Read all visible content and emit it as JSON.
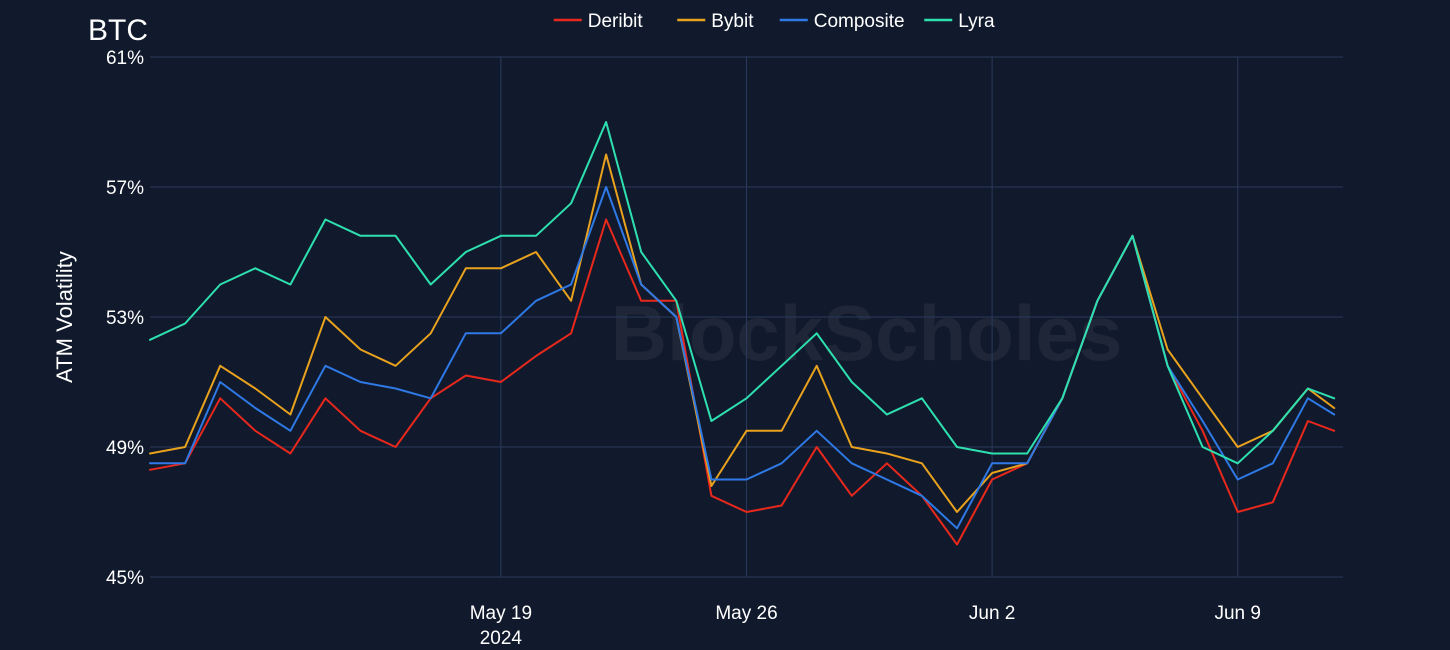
{
  "chart_data": {
    "type": "line",
    "title": "BTC",
    "ylabel": "ATM Volatility",
    "xlabel": "",
    "watermark": "BlockScholes",
    "ylim": [
      45,
      61
    ],
    "yticks": [
      45,
      49,
      53,
      57,
      61
    ],
    "ytick_labels": [
      "45%",
      "49%",
      "53%",
      "57%",
      "61%"
    ],
    "xlim": [
      "2024-05-09",
      "2024-06-12T00:00"
    ],
    "xticks": [
      {
        "date": "2024-05-19",
        "label": "May 19",
        "sublabel": "2024"
      },
      {
        "date": "2024-05-26",
        "label": "May 26",
        "sublabel": ""
      },
      {
        "date": "2024-06-02",
        "label": "Jun 2",
        "sublabel": ""
      },
      {
        "date": "2024-06-09",
        "label": "Jun 9",
        "sublabel": ""
      }
    ],
    "legend_placement": "top-center",
    "grid": true,
    "x": [
      "2024-05-09",
      "2024-05-10",
      "2024-05-11",
      "2024-05-12",
      "2024-05-13",
      "2024-05-14",
      "2024-05-15",
      "2024-05-16",
      "2024-05-17",
      "2024-05-18",
      "2024-05-19",
      "2024-05-20",
      "2024-05-21",
      "2024-05-22",
      "2024-05-23",
      "2024-05-24",
      "2024-05-25",
      "2024-05-26",
      "2024-05-27",
      "2024-05-28",
      "2024-05-29",
      "2024-05-30",
      "2024-05-31",
      "2024-06-01",
      "2024-06-02",
      "2024-06-03",
      "2024-06-04",
      "2024-06-05",
      "2024-06-06",
      "2024-06-07",
      "2024-06-08",
      "2024-06-09",
      "2024-06-10",
      "2024-06-11",
      "2024-06-11T18:00"
    ],
    "series": [
      {
        "name": "Deribit",
        "color": "#e8281c",
        "values": [
          48.3,
          48.5,
          50.5,
          49.5,
          48.8,
          50.5,
          49.5,
          49.0,
          50.5,
          51.2,
          51.0,
          51.8,
          52.5,
          56.0,
          53.5,
          53.5,
          47.5,
          47.0,
          47.2,
          49.0,
          47.5,
          48.5,
          47.5,
          46.0,
          48.0,
          48.5,
          50.5,
          53.5,
          55.5,
          51.5,
          49.5,
          47.0,
          47.3,
          49.8,
          49.5
        ]
      },
      {
        "name": "Bybit",
        "color": "#e8a21e",
        "values": [
          48.8,
          49.0,
          51.5,
          50.8,
          50.0,
          53.0,
          52.0,
          51.5,
          52.5,
          54.5,
          54.5,
          55.0,
          53.5,
          58.0,
          54.0,
          53.0,
          47.8,
          49.5,
          49.5,
          51.5,
          49.0,
          48.8,
          48.5,
          47.0,
          48.2,
          48.5,
          50.5,
          53.5,
          55.5,
          52.0,
          50.5,
          49.0,
          49.5,
          50.8,
          50.2
        ]
      },
      {
        "name": "Composite",
        "color": "#2e79e6",
        "values": [
          48.5,
          48.5,
          51.0,
          50.2,
          49.5,
          51.5,
          51.0,
          50.8,
          50.5,
          52.5,
          52.5,
          53.5,
          54.0,
          57.0,
          54.0,
          53.0,
          48.0,
          48.0,
          48.5,
          49.5,
          48.5,
          48.0,
          47.5,
          46.5,
          48.5,
          48.5,
          50.5,
          53.5,
          55.5,
          51.5,
          49.8,
          48.0,
          48.5,
          50.5,
          50.0
        ]
      },
      {
        "name": "Lyra",
        "color": "#2ee0b0",
        "values": [
          52.3,
          52.8,
          54.0,
          54.5,
          54.0,
          56.0,
          55.5,
          55.5,
          54.0,
          55.0,
          55.5,
          55.5,
          56.5,
          59.0,
          55.0,
          53.5,
          49.8,
          50.5,
          51.5,
          52.5,
          51.0,
          50.0,
          50.5,
          49.0,
          48.8,
          48.8,
          50.5,
          53.5,
          55.5,
          51.5,
          49.0,
          48.5,
          49.5,
          50.8,
          50.5
        ]
      }
    ]
  }
}
